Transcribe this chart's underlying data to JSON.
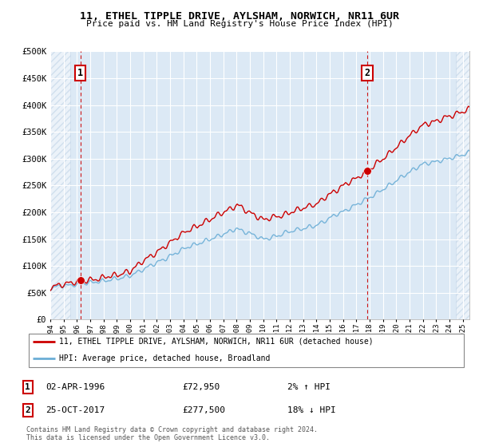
{
  "title1": "11, ETHEL TIPPLE DRIVE, AYLSHAM, NORWICH, NR11 6UR",
  "title2": "Price paid vs. HM Land Registry's House Price Index (HPI)",
  "ylim": [
    0,
    500000
  ],
  "yticks": [
    0,
    50000,
    100000,
    150000,
    200000,
    250000,
    300000,
    350000,
    400000,
    450000,
    500000
  ],
  "ytick_labels": [
    "£0",
    "£50K",
    "£100K",
    "£150K",
    "£200K",
    "£250K",
    "£300K",
    "£350K",
    "£400K",
    "£450K",
    "£500K"
  ],
  "hpi_color": "#6baed6",
  "price_color": "#cc0000",
  "marker_color": "#cc0000",
  "vline_color": "#cc0000",
  "background_color": "#dce9f5",
  "grid_color": "#c8d8eb",
  "hatch_color": "#c8d8eb",
  "sale1_year": 1996.25,
  "sale1_price": 72950,
  "sale1_label": "1",
  "sale2_year": 2017.82,
  "sale2_price": 277500,
  "sale2_label": "2",
  "legend_entry1": "11, ETHEL TIPPLE DRIVE, AYLSHAM, NORWICH, NR11 6UR (detached house)",
  "legend_entry2": "HPI: Average price, detached house, Broadland",
  "annotation1_date": "02-APR-1996",
  "annotation1_price": "£72,950",
  "annotation1_hpi": "2% ↑ HPI",
  "annotation2_date": "25-OCT-2017",
  "annotation2_price": "£277,500",
  "annotation2_hpi": "18% ↓ HPI",
  "footer": "Contains HM Land Registry data © Crown copyright and database right 2024.\nThis data is licensed under the Open Government Licence v3.0.",
  "xmin": 1994,
  "xmax": 2025.5
}
